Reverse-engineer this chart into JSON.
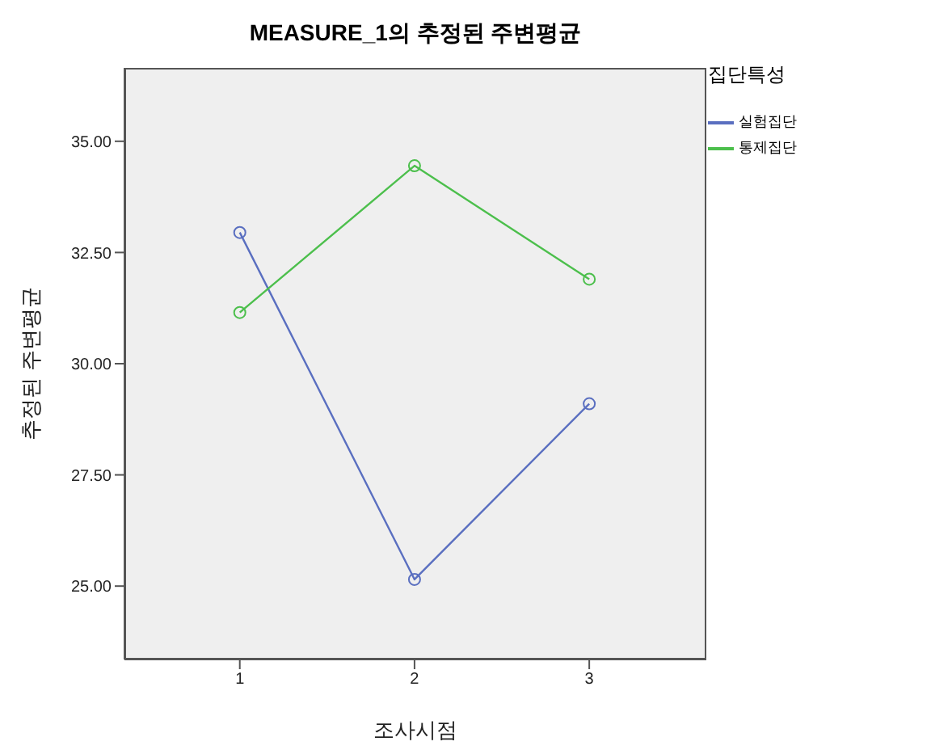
{
  "chart_data": {
    "type": "line",
    "title": "MEASURE_1의 추정된 주변평균",
    "xlabel": "조사시점",
    "ylabel": "추정된 주변평균",
    "legend_title": "집단특성",
    "x": [
      1,
      2,
      3
    ],
    "series": [
      {
        "name": "실험집단",
        "color": "#5a6fc0",
        "values": [
          32.95,
          25.15,
          29.1
        ]
      },
      {
        "name": "통제집단",
        "color": "#4cbf4c",
        "values": [
          31.15,
          34.45,
          31.9
        ]
      }
    ],
    "xlim": [
      0.34,
      3.67
    ],
    "xticks": [
      1,
      2,
      3
    ],
    "ylim": [
      23.35,
      36.65
    ],
    "yticks": [
      {
        "value": 25,
        "label": "25.00"
      },
      {
        "value": 27.5,
        "label": "27.50"
      },
      {
        "value": 30,
        "label": "30.00"
      },
      {
        "value": 32.5,
        "label": "32.50"
      },
      {
        "value": 35,
        "label": "35.00"
      }
    ],
    "grid": false,
    "legend": "top right",
    "marker": "circle",
    "line_style": "solid"
  }
}
